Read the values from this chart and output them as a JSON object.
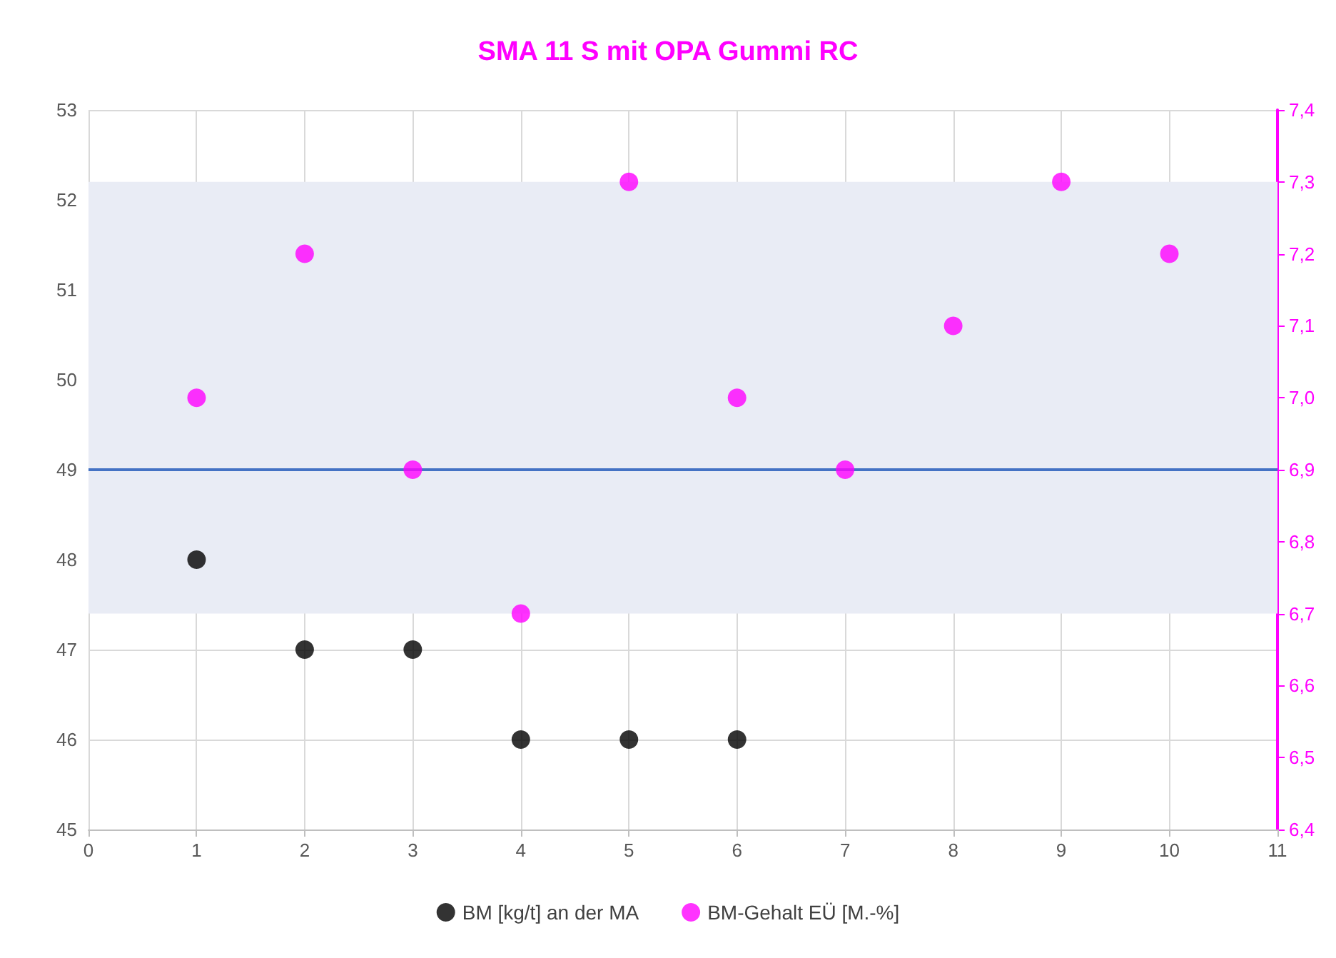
{
  "chart_data": {
    "type": "scatter",
    "title": "SMA 11 S mit OPA Gummi RC",
    "series": [
      {
        "name": "BM [kg/t] an der MA",
        "color": "#000000",
        "x": [
          1,
          2,
          3,
          4,
          5,
          6
        ],
        "values": [
          48,
          47,
          47,
          46,
          46,
          46
        ]
      },
      {
        "name": "BM-Gehalt EÜ [M.-%]",
        "color": "#ff00ff",
        "axis": "y2",
        "x": [
          1,
          2,
          3,
          4,
          5,
          6,
          7,
          8,
          9,
          10
        ],
        "values": [
          7.0,
          7.2,
          6.9,
          6.7,
          7.3,
          7.0,
          6.9,
          7.1,
          7.3,
          7.2
        ]
      }
    ],
    "xlim": [
      0,
      11
    ],
    "xticks": [
      0,
      1,
      2,
      3,
      4,
      5,
      6,
      7,
      8,
      9,
      10,
      11
    ],
    "ylim": [
      45,
      53
    ],
    "yticks": [
      45,
      46,
      47,
      48,
      49,
      50,
      51,
      52,
      53
    ],
    "y2lim": [
      6.4,
      7.4
    ],
    "y2ticks": [
      {
        "value": 6.4,
        "label": "6,4"
      },
      {
        "value": 6.5,
        "label": "6,5"
      },
      {
        "value": 6.6,
        "label": "6,6"
      },
      {
        "value": 6.7,
        "label": "6,7"
      },
      {
        "value": 6.8,
        "label": "6,8"
      },
      {
        "value": 6.9,
        "label": "6,9"
      },
      {
        "value": 7.0,
        "label": "7,0"
      },
      {
        "value": 7.1,
        "label": "7,1"
      },
      {
        "value": 7.2,
        "label": "7,2"
      },
      {
        "value": 7.3,
        "label": "7,3"
      },
      {
        "value": 7.4,
        "label": "7,4"
      }
    ],
    "ref_lines": [
      {
        "axis": "y",
        "value": 49,
        "color": "#4472c4",
        "line_style": "solid"
      }
    ],
    "bands": [
      {
        "axis": "y2",
        "from": 6.7,
        "to": 7.3,
        "color": "#e9ecf5"
      }
    ],
    "grid": true,
    "legend": "bottom",
    "marker": "circle"
  }
}
